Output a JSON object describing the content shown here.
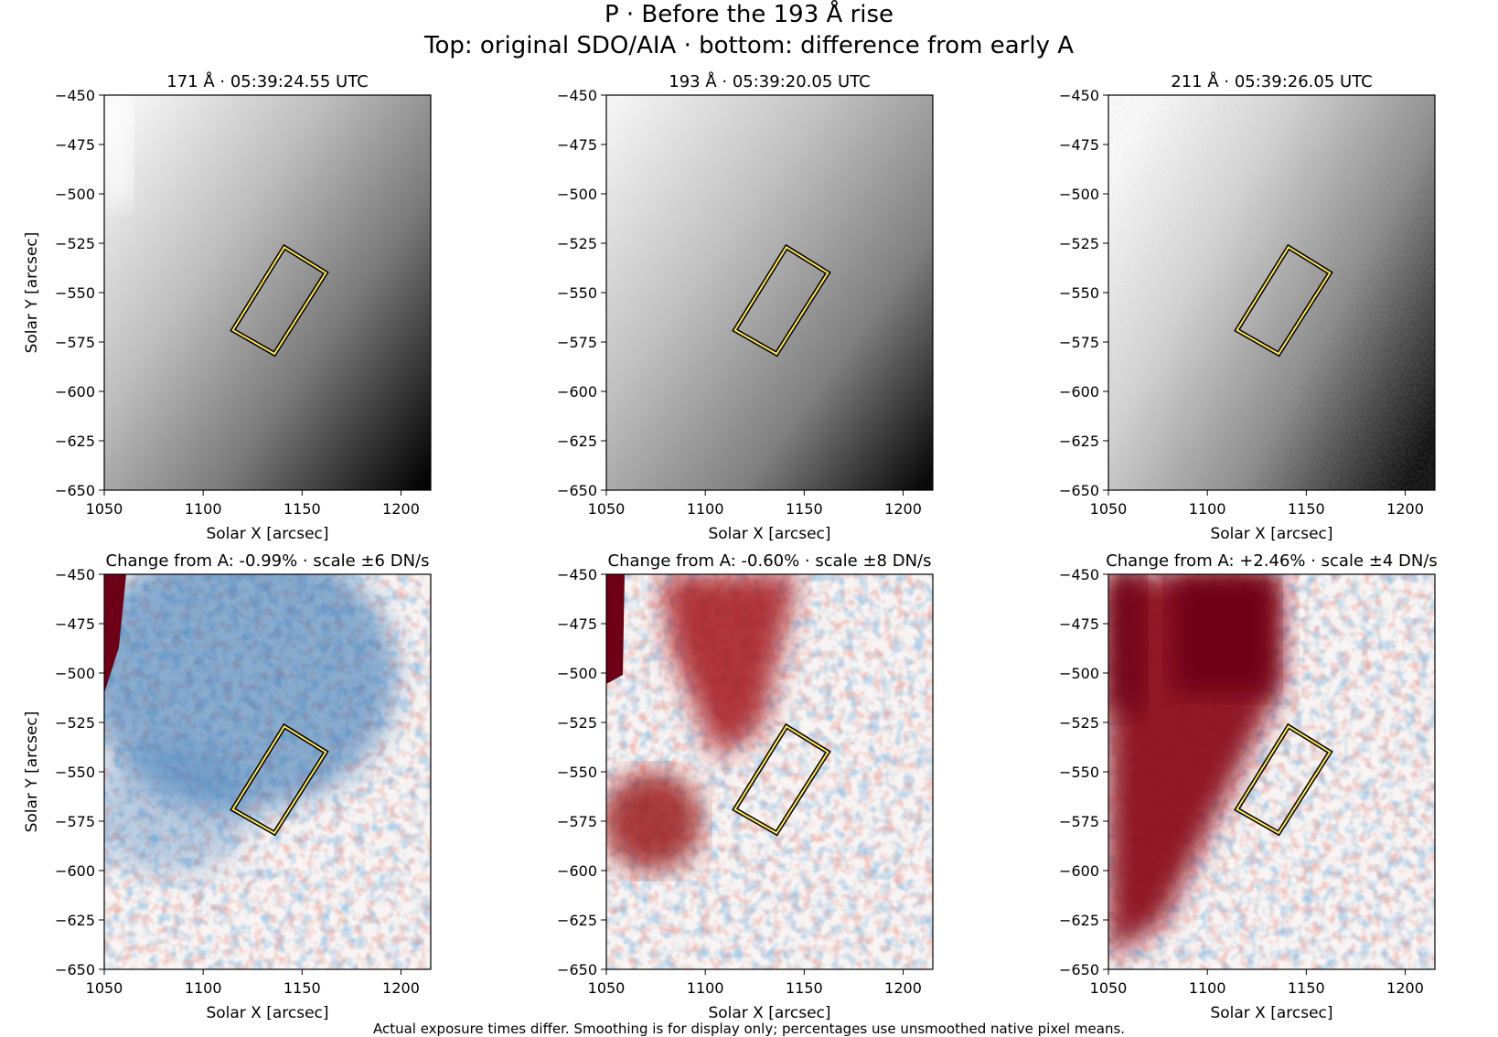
{
  "figure": {
    "title": "P · Before the 193 Å rise",
    "subtitle": "Top: original SDO/AIA · bottom: difference from early A",
    "footnote": "Actual exposure times differ. Smoothing is for display only; percentages use unsmoothed native pixel means."
  },
  "chart_data": [
    {
      "type": "heatmap",
      "panel": "171-original",
      "row": "top",
      "colormap": "gray",
      "title": "171 Å · 05:39:24.55 UTC",
      "xlabel": "Solar X [arcsec]",
      "ylabel": "Solar Y [arcsec]",
      "xlim": [
        1050,
        1215
      ],
      "ylim": [
        -650,
        -450
      ],
      "xticks": [
        1050,
        1100,
        1150,
        1200
      ],
      "yticks": [
        -450,
        -475,
        -500,
        -525,
        -550,
        -575,
        -600,
        -625,
        -650
      ],
      "region_box": [
        [
          1141,
          -527
        ],
        [
          1162,
          -540
        ],
        [
          1136,
          -581
        ],
        [
          1115,
          -569
        ]
      ],
      "pattern": "bright upper-left limb fading to dark lower-right"
    },
    {
      "type": "heatmap",
      "panel": "193-original",
      "row": "top",
      "colormap": "gray",
      "title": "193 Å · 05:39:20.05 UTC",
      "xlabel": "Solar X [arcsec]",
      "ylabel": "",
      "xlim": [
        1050,
        1215
      ],
      "ylim": [
        -650,
        -450
      ],
      "xticks": [
        1050,
        1100,
        1150,
        1200
      ],
      "yticks": [
        -450,
        -475,
        -500,
        -525,
        -550,
        -575,
        -600,
        -625,
        -650
      ],
      "region_box": [
        [
          1141,
          -527
        ],
        [
          1162,
          -540
        ],
        [
          1136,
          -581
        ],
        [
          1115,
          -569
        ]
      ],
      "pattern": "bright upper-left fading to dark lower-right"
    },
    {
      "type": "heatmap",
      "panel": "211-original",
      "row": "top",
      "colormap": "gray",
      "title": "211 Å · 05:39:26.05 UTC",
      "xlabel": "Solar X [arcsec]",
      "ylabel": "",
      "xlim": [
        1050,
        1215
      ],
      "ylim": [
        -650,
        -450
      ],
      "xticks": [
        1050,
        1100,
        1150,
        1200
      ],
      "yticks": [
        -450,
        -475,
        -500,
        -525,
        -550,
        -575,
        -600,
        -625,
        -650
      ],
      "region_box": [
        [
          1141,
          -527
        ],
        [
          1162,
          -540
        ],
        [
          1136,
          -581
        ],
        [
          1115,
          -569
        ]
      ],
      "pattern": "bright upper-left fading to dark right, noisy"
    },
    {
      "type": "heatmap",
      "panel": "171-difference",
      "row": "bottom",
      "colormap": "RdBu_r",
      "title": "Change from A: -0.99% · scale ±6 DN/s",
      "xlabel": "Solar X [arcsec]",
      "ylabel": "Solar Y [arcsec]",
      "xlim": [
        1050,
        1215
      ],
      "ylim": [
        -650,
        -450
      ],
      "xticks": [
        1050,
        1100,
        1150,
        1200
      ],
      "yticks": [
        -450,
        -475,
        -500,
        -525,
        -550,
        -575,
        -600,
        -625,
        -650
      ],
      "change_percent": -0.99,
      "scale_dn_s": 6,
      "region_box": [
        [
          1141,
          -527
        ],
        [
          1162,
          -540
        ],
        [
          1136,
          -581
        ],
        [
          1115,
          -569
        ]
      ],
      "pattern": "blue decrease upper-left band, dark red at left limb"
    },
    {
      "type": "heatmap",
      "panel": "193-difference",
      "row": "bottom",
      "colormap": "RdBu_r",
      "title": "Change from A: -0.60% · scale ±8 DN/s",
      "xlabel": "Solar X [arcsec]",
      "ylabel": "",
      "xlim": [
        1050,
        1215
      ],
      "ylim": [
        -650,
        -450
      ],
      "xticks": [
        1050,
        1100,
        1150,
        1200
      ],
      "yticks": [
        -450,
        -475,
        -500,
        -525,
        -550,
        -575,
        -600,
        -625,
        -650
      ],
      "change_percent": -0.6,
      "scale_dn_s": 8,
      "region_box": [
        [
          1141,
          -527
        ],
        [
          1162,
          -540
        ],
        [
          1136,
          -581
        ],
        [
          1115,
          -569
        ]
      ],
      "pattern": "red increase diagonal band upper-center, red blob lower-left"
    },
    {
      "type": "heatmap",
      "panel": "211-difference",
      "row": "bottom",
      "colormap": "RdBu_r",
      "title": "Change from A: +2.46% · scale ±4 DN/s",
      "xlabel": "Solar X [arcsec]",
      "ylabel": "",
      "xlim": [
        1050,
        1215
      ],
      "ylim": [
        -650,
        -450
      ],
      "xticks": [
        1050,
        1100,
        1150,
        1200
      ],
      "yticks": [
        -450,
        -475,
        -500,
        -525,
        -550,
        -575,
        -600,
        -625,
        -650
      ],
      "change_percent": 2.46,
      "scale_dn_s": 4,
      "region_box": [
        [
          1141,
          -527
        ],
        [
          1162,
          -540
        ],
        [
          1136,
          -581
        ],
        [
          1115,
          -569
        ]
      ],
      "pattern": "strong red increase over left and upper-center, white elsewhere"
    }
  ]
}
